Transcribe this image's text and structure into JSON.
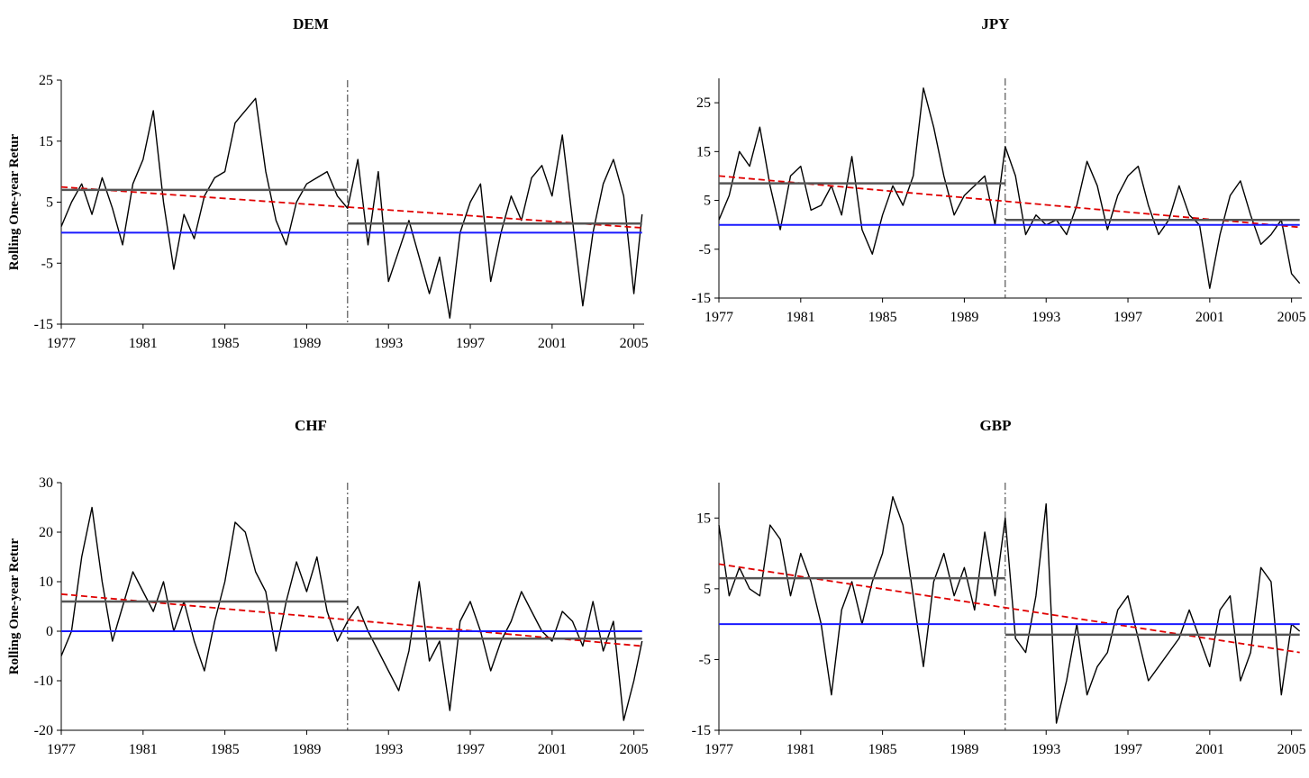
{
  "figure": {
    "ylabel": "Rolling One-year Retur"
  },
  "chart_data": [
    {
      "type": "line",
      "title": "DEM",
      "ylabel": "Rolling One-year Retur",
      "xlabel": "",
      "ylim": [
        -15,
        25
      ],
      "y_ticks": [
        -15,
        -5,
        5,
        15,
        25
      ],
      "xlim": [
        1977,
        2005.5
      ],
      "x_ticks": [
        "1977",
        "1981",
        "1985",
        "1989",
        "1993",
        "1997",
        "2001",
        "2005"
      ],
      "break_year": 1991,
      "colors": {
        "series": "#000000",
        "trend": "#e00000",
        "zero": "#1a1aff",
        "mean": "#555555",
        "break": "#333333"
      },
      "series": [
        {
          "name": "",
          "x": [
            1977,
            1977.5,
            1978,
            1978.5,
            1979,
            1979.5,
            1980,
            1980.5,
            1981,
            1981.5,
            1982,
            1982.5,
            1983,
            1983.5,
            1984,
            1984.5,
            1985,
            1985.5,
            1986,
            1986.5,
            1987,
            1987.5,
            1988,
            1988.5,
            1989,
            1989.5,
            1990,
            1990.5,
            1991,
            1991.5,
            1992,
            1992.5,
            1993,
            1993.5,
            1994,
            1994.5,
            1995,
            1995.5,
            1996,
            1996.5,
            1997,
            1997.5,
            1998,
            1998.5,
            1999,
            1999.5,
            2000,
            2000.5,
            2001,
            2001.5,
            2002,
            2002.5,
            2003,
            2003.5,
            2004,
            2004.5,
            2005,
            2005.4
          ],
          "y": [
            1,
            5,
            8,
            3,
            9,
            4,
            -2,
            8,
            12,
            20,
            5,
            -6,
            3,
            -1,
            6,
            9,
            10,
            18,
            20,
            22,
            10,
            2,
            -2,
            5,
            8,
            9,
            10,
            6,
            4,
            12,
            -2,
            10,
            -8,
            -3,
            2,
            -4,
            -10,
            -4,
            -14,
            0,
            5,
            8,
            -8,
            0,
            6,
            2,
            9,
            11,
            6,
            16,
            2,
            -12,
            0,
            8,
            12,
            6,
            -10,
            3
          ]
        },
        {
          "name": "trend",
          "x": [
            1977,
            2005.4
          ],
          "y": [
            7.5,
            0.8
          ]
        },
        {
          "name": "mean-pre",
          "x": [
            1977,
            1991
          ],
          "y": [
            7,
            7
          ]
        },
        {
          "name": "mean-post",
          "x": [
            1991,
            2005.4
          ],
          "y": [
            1.5,
            1.5
          ]
        },
        {
          "name": "zero",
          "x": [
            1977,
            2005.4
          ],
          "y": [
            0,
            0
          ]
        }
      ]
    },
    {
      "type": "line",
      "title": "JPY",
      "ylabel": "",
      "xlabel": "",
      "ylim": [
        -15,
        30
      ],
      "y_ticks": [
        -15,
        -5,
        5,
        15,
        25
      ],
      "xlim": [
        1977,
        2005.5
      ],
      "x_ticks": [
        "1977",
        "1981",
        "1985",
        "1989",
        "1993",
        "1997",
        "2001",
        "2005"
      ],
      "break_year": 1991,
      "colors": {
        "series": "#000000",
        "trend": "#e00000",
        "zero": "#1a1aff",
        "mean": "#555555",
        "break": "#333333"
      },
      "series": [
        {
          "name": "",
          "x": [
            1977,
            1977.5,
            1978,
            1978.5,
            1979,
            1979.5,
            1980,
            1980.5,
            1981,
            1981.5,
            1982,
            1982.5,
            1983,
            1983.5,
            1984,
            1984.5,
            1985,
            1985.5,
            1986,
            1986.5,
            1987,
            1987.5,
            1988,
            1988.5,
            1989,
            1989.5,
            1990,
            1990.5,
            1991,
            1991.5,
            1992,
            1992.5,
            1993,
            1993.5,
            1994,
            1994.5,
            1995,
            1995.5,
            1996,
            1996.5,
            1997,
            1997.5,
            1998,
            1998.5,
            1999,
            1999.5,
            2000,
            2000.5,
            2001,
            2001.5,
            2002,
            2002.5,
            2003,
            2003.5,
            2004,
            2004.5,
            2005,
            2005.4
          ],
          "y": [
            1,
            6,
            15,
            12,
            20,
            8,
            -1,
            10,
            12,
            3,
            4,
            8,
            2,
            14,
            -1,
            -6,
            2,
            8,
            4,
            10,
            28,
            20,
            10,
            2,
            6,
            8,
            10,
            0,
            16,
            10,
            -2,
            2,
            0,
            1,
            -2,
            4,
            13,
            8,
            -1,
            6,
            10,
            12,
            4,
            -2,
            1,
            8,
            2,
            0,
            -13,
            -2,
            6,
            9,
            2,
            -4,
            -2,
            1,
            -10,
            -12
          ]
        },
        {
          "name": "trend",
          "x": [
            1977,
            2005.4
          ],
          "y": [
            10,
            -0.5
          ]
        },
        {
          "name": "mean-pre",
          "x": [
            1977,
            1991
          ],
          "y": [
            8.5,
            8.5
          ]
        },
        {
          "name": "mean-post",
          "x": [
            1991,
            2005.4
          ],
          "y": [
            1,
            1
          ]
        },
        {
          "name": "zero",
          "x": [
            1977,
            2005.4
          ],
          "y": [
            0,
            0
          ]
        }
      ]
    },
    {
      "type": "line",
      "title": "CHF",
      "ylabel": "Rolling One-year Retur",
      "xlabel": "",
      "ylim": [
        -20,
        30
      ],
      "y_ticks": [
        -20,
        -10,
        0,
        10,
        20,
        30
      ],
      "xlim": [
        1977,
        2005.5
      ],
      "x_ticks": [
        "1977",
        "1981",
        "1985",
        "1989",
        "1993",
        "1997",
        "2001",
        "2005"
      ],
      "break_year": 1991,
      "colors": {
        "series": "#000000",
        "trend": "#e00000",
        "zero": "#1a1aff",
        "mean": "#555555",
        "break": "#333333"
      },
      "series": [
        {
          "name": "",
          "x": [
            1977,
            1977.5,
            1978,
            1978.5,
            1979,
            1979.5,
            1980,
            1980.5,
            1981,
            1981.5,
            1982,
            1982.5,
            1983,
            1983.5,
            1984,
            1984.5,
            1985,
            1985.5,
            1986,
            1986.5,
            1987,
            1987.5,
            1988,
            1988.5,
            1989,
            1989.5,
            1990,
            1990.5,
            1991,
            1991.5,
            1992,
            1992.5,
            1993,
            1993.5,
            1994,
            1994.5,
            1995,
            1995.5,
            1996,
            1996.5,
            1997,
            1997.5,
            1998,
            1998.5,
            1999,
            1999.5,
            2000,
            2000.5,
            2001,
            2001.5,
            2002,
            2002.5,
            2003,
            2003.5,
            2004,
            2004.5,
            2005,
            2005.4
          ],
          "y": [
            -5,
            0,
            15,
            25,
            10,
            -2,
            5,
            12,
            8,
            4,
            10,
            0,
            6,
            -2,
            -8,
            2,
            10,
            22,
            20,
            12,
            8,
            -4,
            6,
            14,
            8,
            15,
            4,
            -2,
            2,
            5,
            0,
            -4,
            -8,
            -12,
            -4,
            10,
            -6,
            -2,
            -16,
            2,
            6,
            0,
            -8,
            -2,
            2,
            8,
            4,
            0,
            -2,
            4,
            2,
            -3,
            6,
            -4,
            2,
            -18,
            -10,
            -2
          ]
        },
        {
          "name": "trend",
          "x": [
            1977,
            2005.4
          ],
          "y": [
            7.5,
            -3
          ]
        },
        {
          "name": "mean-pre",
          "x": [
            1977,
            1991
          ],
          "y": [
            6,
            6
          ]
        },
        {
          "name": "mean-post",
          "x": [
            1991,
            2005.4
          ],
          "y": [
            -1.5,
            -1.5
          ]
        },
        {
          "name": "zero",
          "x": [
            1977,
            2005.4
          ],
          "y": [
            0,
            0
          ]
        }
      ]
    },
    {
      "type": "line",
      "title": "GBP",
      "ylabel": "",
      "xlabel": "",
      "ylim": [
        -15,
        20
      ],
      "y_ticks": [
        -15,
        -5,
        5,
        15
      ],
      "xlim": [
        1977,
        2005.5
      ],
      "x_ticks": [
        "1977",
        "1981",
        "1985",
        "1989",
        "1993",
        "1997",
        "2001",
        "2005"
      ],
      "break_year": 1991,
      "colors": {
        "series": "#000000",
        "trend": "#e00000",
        "zero": "#1a1aff",
        "mean": "#555555",
        "break": "#333333"
      },
      "series": [
        {
          "name": "",
          "x": [
            1977,
            1977.5,
            1978,
            1978.5,
            1979,
            1979.5,
            1980,
            1980.5,
            1981,
            1981.5,
            1982,
            1982.5,
            1983,
            1983.5,
            1984,
            1984.5,
            1985,
            1985.5,
            1986,
            1986.5,
            1987,
            1987.5,
            1988,
            1988.5,
            1989,
            1989.5,
            1990,
            1990.5,
            1991,
            1991.5,
            1992,
            1992.5,
            1993,
            1993.5,
            1994,
            1994.5,
            1995,
            1995.5,
            1996,
            1996.5,
            1997,
            1997.5,
            1998,
            1998.5,
            1999,
            1999.5,
            2000,
            2000.5,
            2001,
            2001.5,
            2002,
            2002.5,
            2003,
            2003.5,
            2004,
            2004.5,
            2005,
            2005.4
          ],
          "y": [
            14,
            4,
            8,
            5,
            4,
            14,
            12,
            4,
            10,
            6,
            0,
            -10,
            2,
            6,
            0,
            6,
            10,
            18,
            14,
            4,
            -6,
            6,
            10,
            4,
            8,
            2,
            13,
            4,
            15,
            -2,
            -4,
            4,
            17,
            -14,
            -8,
            0,
            -10,
            -6,
            -4,
            2,
            4,
            -2,
            -8,
            -6,
            -4,
            -2,
            2,
            -2,
            -6,
            2,
            4,
            -8,
            -4,
            8,
            6,
            -10,
            0,
            -1
          ]
        },
        {
          "name": "trend",
          "x": [
            1977,
            2005.4
          ],
          "y": [
            8.5,
            -4
          ]
        },
        {
          "name": "mean-pre",
          "x": [
            1977,
            1991
          ],
          "y": [
            6.5,
            6.5
          ]
        },
        {
          "name": "mean-post",
          "x": [
            1991,
            2005.4
          ],
          "y": [
            -1.5,
            -1.5
          ]
        },
        {
          "name": "zero",
          "x": [
            1977,
            2005.4
          ],
          "y": [
            0,
            0
          ]
        }
      ]
    }
  ]
}
